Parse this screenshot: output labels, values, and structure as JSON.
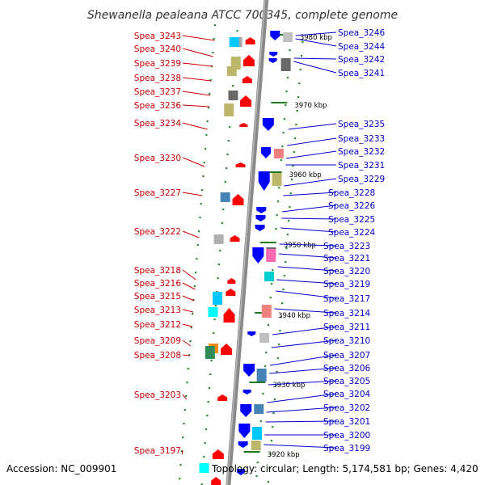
{
  "title": "Shewanella pealeana ATCC 700345, complete genome",
  "footer": {
    "accession": "Accession: NC_009901",
    "topology": "Topology: circular; Length: 5,174,581 bp; Genes: 4,420"
  },
  "colors": {
    "left_strand_genes": "#ff0000",
    "right_strand_genes": "#0000ff",
    "left_labels": "#cc0000",
    "right_labels": "#0000cc",
    "backbone": "#8c8c8c"
  },
  "kbp_markers": [
    {
      "kbp": 3980,
      "label": "3980 kbp"
    },
    {
      "kbp": 3970,
      "label": "3970 kbp"
    },
    {
      "kbp": 3960,
      "label": "3960 kbp"
    },
    {
      "kbp": 3950,
      "label": "3950 kbp"
    },
    {
      "kbp": 3940,
      "label": "3940 kbp"
    },
    {
      "kbp": 3930,
      "label": "3930 kbp"
    },
    {
      "kbp": 3920,
      "label": "3920 kbp"
    }
  ],
  "left_genes": [
    {
      "label": "Spea_3243"
    },
    {
      "label": "Spea_3240"
    },
    {
      "label": "Spea_3239"
    },
    {
      "label": "Spea_3238"
    },
    {
      "label": "Spea_3237"
    },
    {
      "label": "Spea_3236"
    },
    {
      "label": "Spea_3234"
    },
    {
      "label": "Spea_3230"
    },
    {
      "label": "Spea_3227"
    },
    {
      "label": "Spea_3222"
    },
    {
      "label": "Spea_3218"
    },
    {
      "label": "Spea_3216"
    },
    {
      "label": "Spea_3215"
    },
    {
      "label": "Spea_3213"
    },
    {
      "label": "Spea_3212"
    },
    {
      "label": "Spea_3209"
    },
    {
      "label": "Spea_3208"
    },
    {
      "label": "Spea_3203"
    },
    {
      "label": "Spea_3197"
    }
  ],
  "right_genes": [
    {
      "label": "Spea_3246"
    },
    {
      "label": "Spea_3244"
    },
    {
      "label": "Spea_3242"
    },
    {
      "label": "Spea_3241"
    },
    {
      "label": "Spea_3235"
    },
    {
      "label": "Spea_3233"
    },
    {
      "label": "Spea_3232"
    },
    {
      "label": "Spea_3231"
    },
    {
      "label": "Spea_3229"
    },
    {
      "label": "Spea_3228"
    },
    {
      "label": "Spea_3226"
    },
    {
      "label": "Spea_3225"
    },
    {
      "label": "Spea_3224"
    },
    {
      "label": "Spea_3223"
    },
    {
      "label": "Spea_3221"
    },
    {
      "label": "Spea_3220"
    },
    {
      "label": "Spea_3219"
    },
    {
      "label": "Spea_3217"
    },
    {
      "label": "Spea_3214"
    },
    {
      "label": "Spea_3211"
    },
    {
      "label": "Spea_3210"
    },
    {
      "label": "Spea_3207"
    },
    {
      "label": "Spea_3206"
    },
    {
      "label": "Spea_3205"
    },
    {
      "label": "Spea_3204"
    },
    {
      "label": "Spea_3202"
    },
    {
      "label": "Spea_3201"
    },
    {
      "label": "Spea_3200"
    },
    {
      "label": "Spea_3199"
    }
  ]
}
